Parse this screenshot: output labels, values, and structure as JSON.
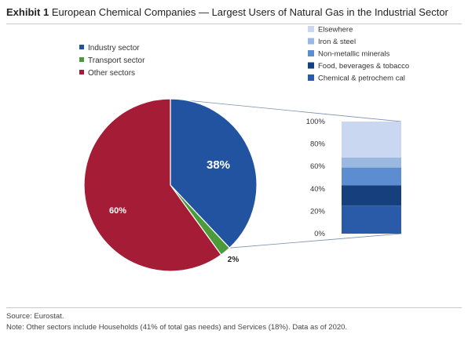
{
  "header": {
    "exhibit": "Exhibit 1",
    "title": "European Chemical Companies — Largest Users of Natural Gas in the Industrial Sector"
  },
  "chart_data": [
    {
      "type": "pie",
      "legend_placement": "top-left",
      "series": [
        {
          "name": "Industry sector",
          "value": 38,
          "label": "38%",
          "color": "#2153a0"
        },
        {
          "name": "Transport sector",
          "value": 2,
          "label": "2%",
          "color": "#4c9a3a"
        },
        {
          "name": "Other sectors",
          "value": 60,
          "label": "60%",
          "color": "#a41c35"
        }
      ]
    },
    {
      "type": "bar",
      "stacked": true,
      "legend_placement": "top",
      "ylim": [
        0,
        100
      ],
      "yticks": [
        "0%",
        "20%",
        "40%",
        "60%",
        "80%",
        "100%"
      ],
      "grid": false,
      "series": [
        {
          "name": "Elsewhere",
          "value": 32,
          "color": "#c9d8f0"
        },
        {
          "name": "Iron & steel",
          "value": 9,
          "color": "#9ab8e0"
        },
        {
          "name": "Non-metallic minerals",
          "value": 16,
          "color": "#5b8dd0"
        },
        {
          "name": "Food, beverages & tobacco",
          "value": 18,
          "color": "#163f7e"
        },
        {
          "name": "Chemical & petrochem cal",
          "value": 25,
          "color": "#2a5ba8"
        }
      ]
    }
  ],
  "footer": {
    "source": "Source: Eurostat.",
    "note": "Note: Other sectors include Households (41% of total gas needs) and Services (18%). Data as of 2020."
  }
}
